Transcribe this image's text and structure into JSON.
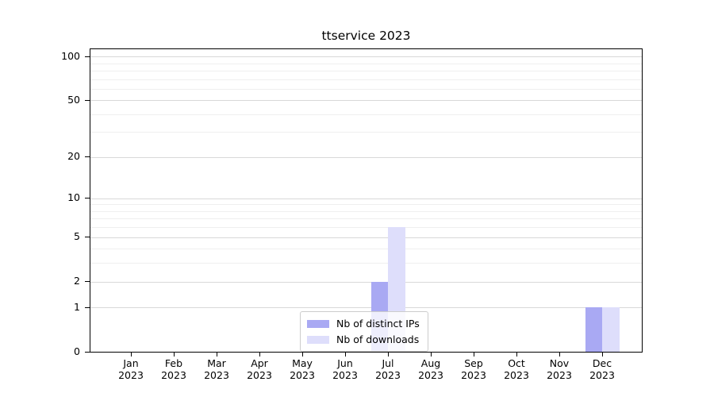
{
  "title": "ttservice 2023",
  "chart_data": {
    "type": "bar",
    "title": "ttservice 2023",
    "categories": [
      "Jan",
      "Feb",
      "Mar",
      "Apr",
      "May",
      "Jun",
      "Jul",
      "Aug",
      "Sep",
      "Oct",
      "Nov",
      "Dec"
    ],
    "x_tick_year": "2023",
    "series": [
      {
        "name": "Nb of distinct IPs",
        "color": "#a9a9f3",
        "values": [
          0,
          0,
          0,
          0,
          0,
          0,
          2,
          0,
          0,
          0,
          0,
          1
        ]
      },
      {
        "name": "Nb of downloads",
        "color": "#dedefb",
        "values": [
          0,
          0,
          0,
          0,
          0,
          0,
          6,
          0,
          0,
          0,
          0,
          1
        ]
      }
    ],
    "xlabel": "",
    "ylabel": "",
    "y_axis": {
      "scale": "log1p",
      "tick_values": [
        0,
        1,
        2,
        5,
        10,
        20,
        50,
        100
      ],
      "minor_gridline_values": [
        3,
        4,
        6,
        7,
        8,
        9,
        30,
        40,
        60,
        70,
        80,
        90
      ],
      "max": 112
    },
    "legend": {
      "position": "lower center"
    },
    "grid": "horizontal",
    "colors": {
      "major_grid": "#d8d8d8",
      "minor_grid": "#efefef",
      "axis": "#000000",
      "background": "#ffffff"
    }
  }
}
